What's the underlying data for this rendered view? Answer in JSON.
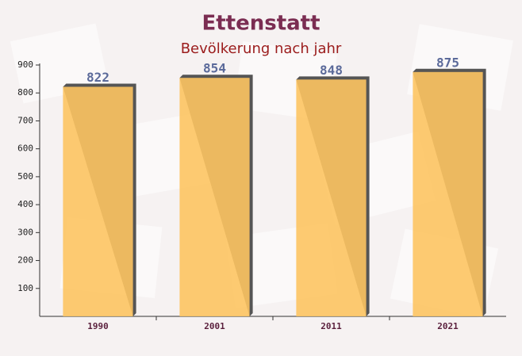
{
  "chart_data": {
    "type": "bar",
    "title": "Ettenstatt",
    "subtitle": "Bevölkerung nach jahr",
    "categories": [
      "1990",
      "2001",
      "2011",
      "2021"
    ],
    "values": [
      822,
      854,
      848,
      875
    ],
    "color": "#fdc462",
    "ylim": [
      0,
      900
    ],
    "yticks": [
      100,
      200,
      300,
      400,
      500,
      600,
      700,
      800,
      900
    ]
  }
}
